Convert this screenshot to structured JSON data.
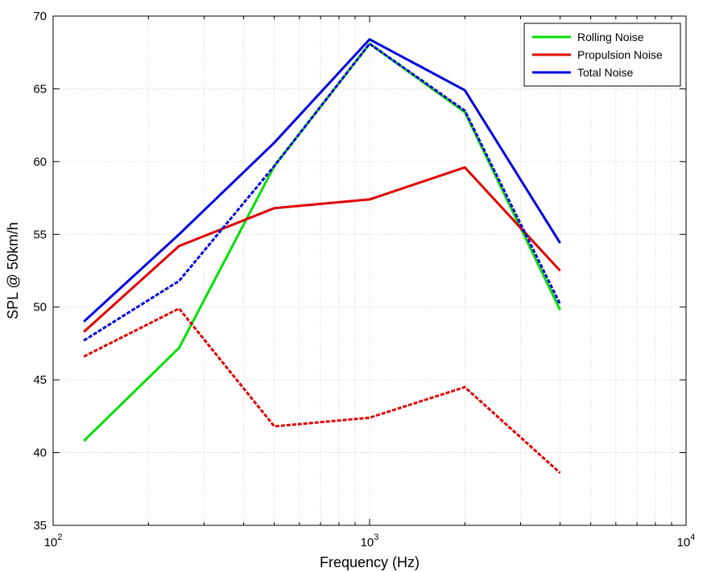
{
  "chart_data": {
    "type": "line",
    "xlabel": "Frequency (Hz)",
    "ylabel": "SPL @ 50km/h",
    "xscale": "log",
    "xlim": [
      100,
      10000
    ],
    "ylim": [
      35,
      70
    ],
    "grid": true,
    "legend_position": "top-right",
    "x_tick_labels": [
      {
        "value": 100,
        "base": "10",
        "exp": "2"
      },
      {
        "value": 1000,
        "base": "10",
        "exp": "3"
      },
      {
        "value": 10000,
        "base": "10",
        "exp": "4"
      }
    ],
    "y_ticks": [
      35,
      40,
      45,
      50,
      55,
      60,
      65,
      70
    ],
    "x": [
      125,
      250,
      500,
      1000,
      2000,
      4000
    ],
    "series": [
      {
        "name": "Rolling Noise",
        "color": "#00e000",
        "dash": "solid",
        "values": [
          40.8,
          47.2,
          59.7,
          68.1,
          63.4,
          49.8
        ]
      },
      {
        "name": "Propulsion Noise",
        "color": "#e00000",
        "dash": "solid",
        "values": [
          48.3,
          54.2,
          56.8,
          57.4,
          59.6,
          52.5
        ]
      },
      {
        "name": "Total Noise",
        "color": "#0000e0",
        "dash": "solid",
        "values": [
          49.0,
          55.0,
          61.3,
          68.4,
          64.9,
          54.4
        ]
      },
      {
        "color": "#0000e0",
        "dash": "dashed",
        "values": [
          47.7,
          51.8,
          59.7,
          68.1,
          63.5,
          50.2
        ]
      },
      {
        "color": "#e00000",
        "dash": "dashed",
        "values": [
          46.6,
          49.9,
          41.8,
          42.4,
          44.5,
          38.6
        ]
      }
    ]
  }
}
